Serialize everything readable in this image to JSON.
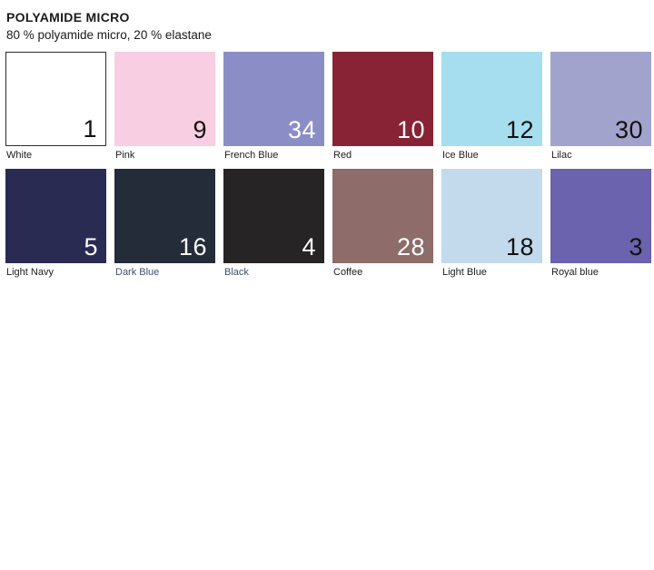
{
  "header": {
    "title": "POLYAMIDE MICRO",
    "subtitle": "80 % polyamide micro, 20 % elastane"
  },
  "theme": {
    "background": "#FFFFFF",
    "text_color": "#1A1A1A",
    "white_tile_border": "#2E2E2E"
  },
  "swatches": [
    {
      "label": "White",
      "number": "1",
      "color": "#FFFFFF",
      "number_color": "#111111",
      "border": true
    },
    {
      "label": "Pink",
      "number": "9",
      "color": "#F8CFE2",
      "number_color": "#111111"
    },
    {
      "label": "French Blue",
      "number": "34",
      "color": "#8B8EC6",
      "number_color": "#FFFFFF"
    },
    {
      "label": "Red",
      "number": "10",
      "color": "#872334",
      "number_color": "#FFFFFF"
    },
    {
      "label": "Ice Blue",
      "number": "12",
      "color": "#A6DEEF",
      "number_color": "#111111"
    },
    {
      "label": "Lilac",
      "number": "30",
      "color": "#A2A3CC",
      "number_color": "#111111"
    },
    {
      "label": "Light Navy",
      "number": "5",
      "color": "#2A2B52",
      "number_color": "#FFFFFF"
    },
    {
      "label": "Dark Blue",
      "number": "16",
      "color": "#242C39",
      "number_color": "#FFFFFF",
      "label_color": "#3F4D70"
    },
    {
      "label": "Black",
      "number": "4",
      "color": "#262425",
      "number_color": "#FFFFFF",
      "label_color": "#3F4D70"
    },
    {
      "label": "Coffee",
      "number": "28",
      "color": "#8D6C6A",
      "number_color": "#FFFFFF"
    },
    {
      "label": "Light Blue",
      "number": "18",
      "color": "#C3DAEC",
      "number_color": "#111111"
    },
    {
      "label": "Royal blue",
      "number": "3",
      "color": "#6B63AD",
      "number_color": "#111111"
    }
  ]
}
